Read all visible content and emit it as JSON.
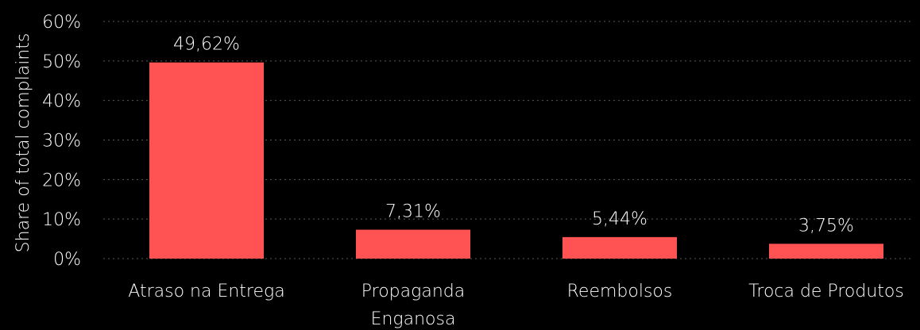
{
  "chart_data": {
    "type": "bar",
    "categories": [
      [
        "Atraso na Entrega"
      ],
      [
        "Propaganda",
        "Enganosa"
      ],
      [
        "Reembolsos"
      ],
      [
        "Troca de Produtos"
      ]
    ],
    "values": [
      49.62,
      7.31,
      5.44,
      3.75
    ],
    "data_labels": [
      "49,62%",
      "7,31%",
      "5,44%",
      "3,75%"
    ],
    "ylabel": "Share of total complaints",
    "ylim": [
      0,
      60
    ],
    "yticks": [
      0,
      10,
      20,
      30,
      40,
      50,
      60
    ],
    "ytick_labels": [
      "0%",
      "10%",
      "20%",
      "30%",
      "40%",
      "50%",
      "60%"
    ],
    "grid": true,
    "bar_color": "#ff5252",
    "background": "#000000",
    "text_color": "#ffffff",
    "grid_color": "#5a5a5a"
  }
}
